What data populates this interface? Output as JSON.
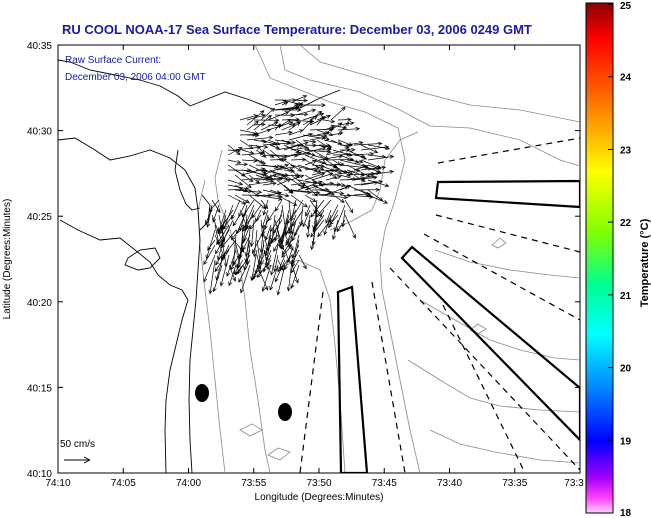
{
  "title": "RU COOL  NOAA-17  Sea Surface Temperature:  December 03, 2006 0249 GMT",
  "current_label_line1": "Raw Surface Current:",
  "current_label_line2": "December 03, 2006 04:00 GMT",
  "scale_label": "50 cm/s",
  "x_axis": {
    "label": "Longitude (Degrees:Minutes)",
    "ticks": [
      "74:10",
      "74:05",
      "74:00",
      "73:55",
      "73:50",
      "73:45",
      "73:40",
      "73:35",
      "73:3"
    ]
  },
  "y_axis": {
    "label": "Latitude (Degrees:Minutes)",
    "ticks": [
      "40:35",
      "40:30",
      "40:25",
      "40:20",
      "40:15",
      "40:10"
    ]
  },
  "colorbar": {
    "label": "Temperature (°C)",
    "ticks": [
      "25",
      "24",
      "23",
      "22",
      "21",
      "20",
      "19",
      "18"
    ],
    "colors": [
      "#8b0000",
      "#ff0000",
      "#ff8000",
      "#ffff00",
      "#80ff00",
      "#00ff80",
      "#00ffff",
      "#0080ff",
      "#0000ff",
      "#8000ff",
      "#ff00ff",
      "#ffc0ff"
    ]
  },
  "chart_data": {
    "type": "map",
    "title": "RU COOL  NOAA-17  Sea Surface Temperature:  December 03, 2006 0249 GMT",
    "xlabel": "Longitude (Degrees:Minutes)",
    "ylabel": "Latitude (Degrees:Minutes)",
    "xlim": [
      "74:10",
      "73:30"
    ],
    "ylim": [
      "40:10",
      "40:35"
    ],
    "colorbar_range": [
      18,
      25
    ],
    "colorbar_units": "°C"
  }
}
